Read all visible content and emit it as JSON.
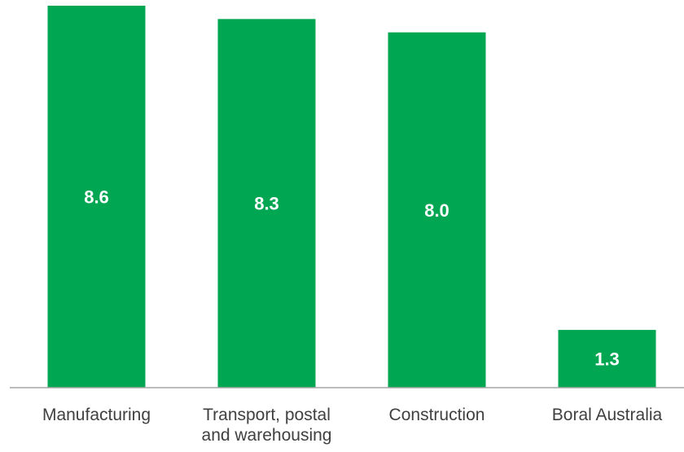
{
  "chart_data": {
    "type": "bar",
    "categories": [
      [
        "Manufacturing"
      ],
      [
        "Transport, postal",
        "and warehousing"
      ],
      [
        "Construction"
      ],
      [
        "Boral Australia"
      ]
    ],
    "values": [
      8.6,
      8.3,
      8.0,
      1.3
    ],
    "value_labels": [
      "8.6",
      "8.3",
      "8.0",
      "1.3"
    ],
    "title": "",
    "xlabel": "",
    "ylabel": "",
    "ylim": [
      0,
      8.6
    ],
    "grid": false,
    "legend": "none",
    "bar_color": "#00A651",
    "axis_color": "#A6A6A6"
  }
}
